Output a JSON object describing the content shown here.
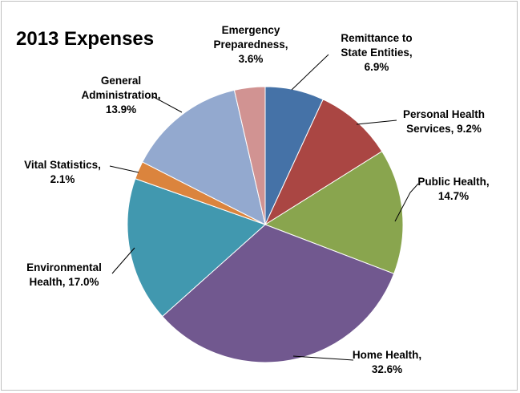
{
  "chart_data": {
    "type": "pie",
    "title": "2013 Expenses",
    "legend": "none",
    "slices": [
      {
        "name": "Remittance to State Entities",
        "value": 6.9,
        "color": "#4572a7",
        "label_lines": [
          "Remittance to",
          "State Entities,",
          "6.9%"
        ]
      },
      {
        "name": "Personal Health Services",
        "value": 9.2,
        "color": "#aa4643",
        "label_lines": [
          "Personal Health",
          "Services, 9.2%"
        ]
      },
      {
        "name": "Public Health",
        "value": 14.7,
        "color": "#89a54e",
        "label_lines": [
          "Public Health,",
          "14.7%"
        ]
      },
      {
        "name": "Home Health",
        "value": 32.6,
        "color": "#71588f",
        "label_lines": [
          "Home Health,",
          "32.6%"
        ]
      },
      {
        "name": "Environmental Health",
        "value": 17.0,
        "color": "#4198af",
        "label_lines": [
          "Environmental",
          "Health, 17.0%"
        ]
      },
      {
        "name": "Vital Statistics",
        "value": 2.1,
        "color": "#db843d",
        "label_lines": [
          "Vital Statistics,",
          "2.1%"
        ]
      },
      {
        "name": "General Administration",
        "value": 13.9,
        "color": "#93a9cf",
        "label_lines": [
          "General",
          "Administration,",
          "13.9%"
        ]
      },
      {
        "name": "Emergency Preparedness",
        "value": 3.6,
        "color": "#d19392",
        "label_lines": [
          "Emergency",
          "Preparedness,",
          "3.6%"
        ]
      }
    ]
  }
}
